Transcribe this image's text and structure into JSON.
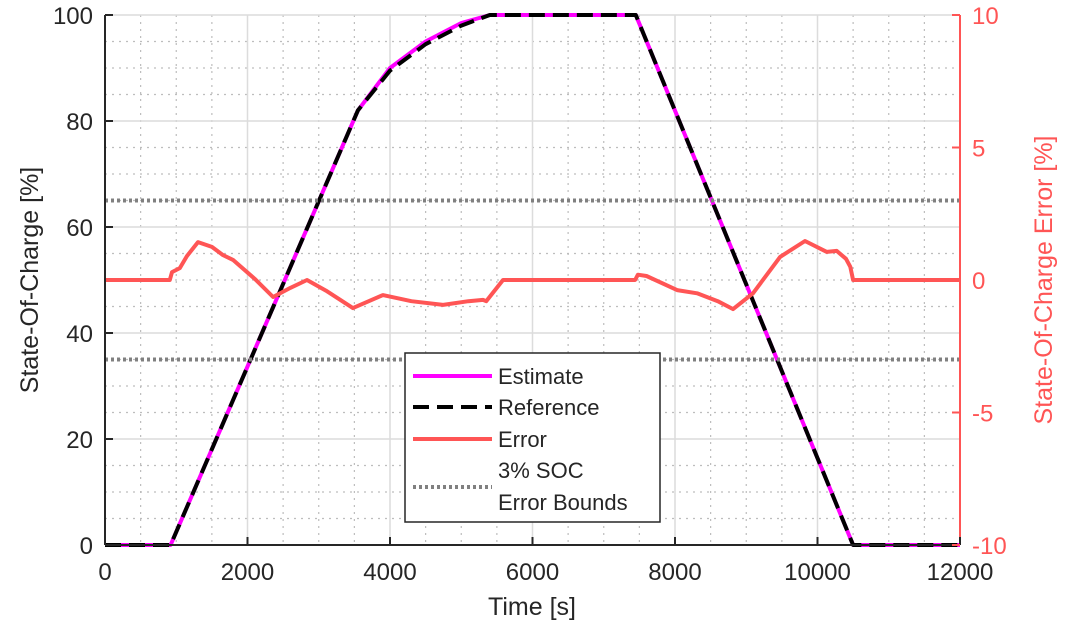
{
  "chart_data": {
    "type": "line",
    "xlabel": "Time [s]",
    "ylabel": "State-Of-Charge [%]",
    "ylabel_right": "State-Of-Charge Error [%]",
    "xlim": [
      0,
      12000
    ],
    "ylim": [
      0,
      100
    ],
    "ylim_right": [
      -10,
      10
    ],
    "xticks": [
      0,
      2000,
      4000,
      6000,
      8000,
      10000,
      12000
    ],
    "yticks": [
      0,
      20,
      40,
      60,
      80,
      100
    ],
    "yticks_right": [
      -10,
      -5,
      0,
      5,
      10
    ],
    "grid": true,
    "minor_grid": true,
    "legend_placement": "bottom-center",
    "colors": {
      "estimate": "#ff00ff",
      "reference": "#000000",
      "error": "#ff5555",
      "bounds": "#808080",
      "right_axis": "#ff5555"
    },
    "series": [
      {
        "name": "Estimate",
        "axis": "left",
        "style": "solid",
        "x": [
          0,
          920,
          3550,
          4000,
          4500,
          5000,
          5400,
          7450,
          10500,
          12000
        ],
        "y": [
          0,
          0,
          82,
          90,
          95,
          98.5,
          100,
          100,
          0,
          0
        ]
      },
      {
        "name": "Reference",
        "axis": "left",
        "style": "dashed",
        "x": [
          0,
          920,
          3550,
          4000,
          4500,
          5000,
          5400,
          7450,
          10500,
          12000
        ],
        "y": [
          0,
          0,
          82,
          89.5,
          94.5,
          98,
          100,
          100,
          0,
          0
        ]
      },
      {
        "name": "Error",
        "axis": "right",
        "style": "solid",
        "x": [
          0,
          910,
          940,
          1050,
          1150,
          1305,
          1500,
          1656,
          1800,
          2100,
          2360,
          2600,
          2835,
          3100,
          3480,
          3900,
          4300,
          4745,
          5100,
          5305,
          5350,
          5586,
          7440,
          7480,
          7600,
          8030,
          8310,
          8600,
          8815,
          9095,
          9475,
          9825,
          10130,
          10270,
          10400,
          10460,
          10500,
          12000
        ],
        "y": [
          0,
          0,
          0.3,
          0.45,
          0.9,
          1.43,
          1.25,
          0.94,
          0.75,
          0.05,
          -0.64,
          -0.3,
          0,
          -0.4,
          -1.06,
          -0.57,
          -0.8,
          -0.94,
          -0.8,
          -0.75,
          -0.8,
          0,
          0,
          0.2,
          0.15,
          -0.38,
          -0.5,
          -0.8,
          -1.1,
          -0.5,
          0.87,
          1.47,
          1.06,
          1.1,
          0.8,
          0.5,
          0,
          0
        ]
      },
      {
        "name": "3% SOC Error Bounds",
        "axis": "right",
        "style": "dotted",
        "bounds": [
          3,
          -3
        ]
      }
    ],
    "legend": [
      "Estimate",
      "Reference",
      "Error",
      "3% SOC",
      "Error Bounds"
    ]
  }
}
